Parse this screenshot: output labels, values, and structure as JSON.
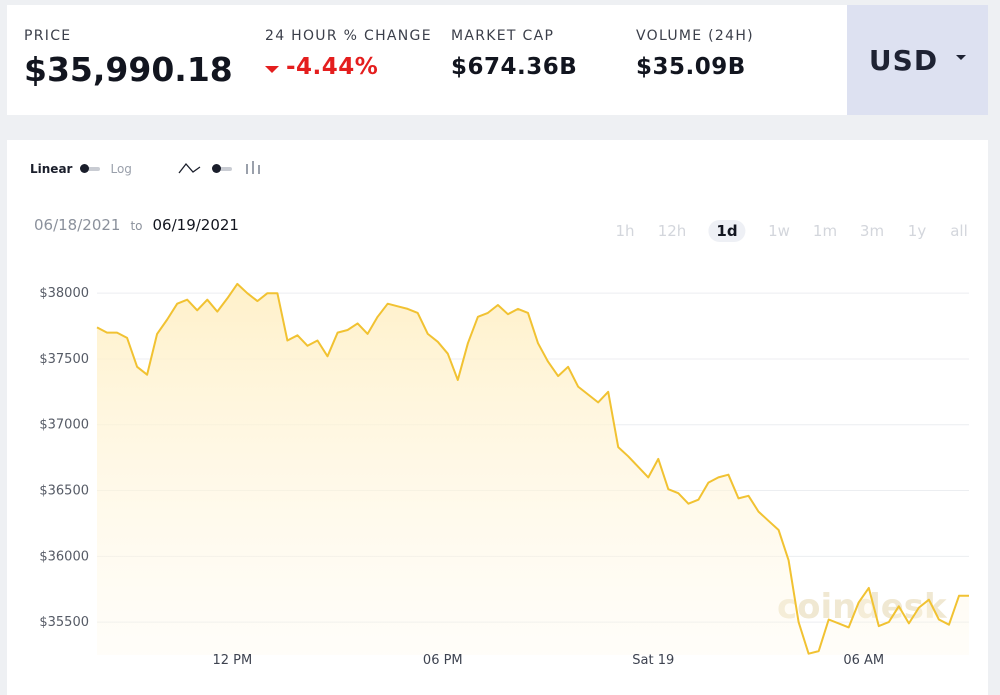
{
  "header": {
    "price": {
      "label": "PRICE",
      "value": "$35,990.18"
    },
    "change": {
      "label": "24 HOUR % CHANGE",
      "value": "-4.44%",
      "direction": "down"
    },
    "market_cap": {
      "label": "MARKET CAP",
      "value": "$674.36B"
    },
    "volume": {
      "label": "VOLUME (24H)",
      "value": "$35.09B"
    },
    "currency": {
      "selected": "USD"
    }
  },
  "controls": {
    "scale_linear": "Linear",
    "scale_log": "Log",
    "line_icon": "line-chart-icon",
    "bar_icon": "candlestick-chart-icon"
  },
  "dates": {
    "from": "06/18/2021",
    "to_word": "to",
    "to": "06/19/2021"
  },
  "ranges": [
    "1h",
    "12h",
    "1d",
    "1w",
    "1m",
    "3m",
    "1y",
    "all"
  ],
  "active_range": "1d",
  "watermark": "coindesk",
  "colors": {
    "line": "#f1c232",
    "fill": "#fff2cc",
    "negative": "#e41e1e",
    "currency_bg": "#dde1f1"
  },
  "chart_data": {
    "type": "area",
    "ylim": [
      35250,
      38100
    ],
    "yticks": [
      35500,
      36000,
      36500,
      37000,
      37500,
      38000
    ],
    "ytick_labels": [
      "$35500",
      "$36000",
      "$36500",
      "$37000",
      "$37500",
      "$38000"
    ],
    "xlim": [
      0,
      87
    ],
    "xticks": [
      {
        "x": 13.5,
        "label": "12 PM"
      },
      {
        "x": 34.5,
        "label": "06 PM"
      },
      {
        "x": 55.5,
        "label": "Sat 19"
      },
      {
        "x": 76.5,
        "label": "06 AM"
      }
    ],
    "grid": true,
    "values": [
      37740,
      37700,
      37700,
      37660,
      37440,
      37380,
      37690,
      37800,
      37920,
      37950,
      37870,
      37950,
      37860,
      37960,
      38070,
      38000,
      37940,
      38000,
      38000,
      37640,
      37680,
      37600,
      37640,
      37520,
      37700,
      37720,
      37770,
      37690,
      37820,
      37920,
      37900,
      37880,
      37850,
      37690,
      37630,
      37540,
      37340,
      37620,
      37820,
      37850,
      37910,
      37840,
      37880,
      37850,
      37620,
      37480,
      37370,
      37440,
      37290,
      37230,
      37170,
      37250,
      36830,
      36760,
      36680,
      36600,
      36740,
      36510,
      36480,
      36400,
      36430,
      36560,
      36600,
      36620,
      36440,
      36460,
      36340,
      36270,
      36200,
      35970,
      35500,
      35260,
      35280,
      35520,
      35490,
      35460,
      35650,
      35760,
      35470,
      35500,
      35620,
      35490,
      35610,
      35670,
      35520,
      35480,
      35700,
      35700
    ]
  }
}
